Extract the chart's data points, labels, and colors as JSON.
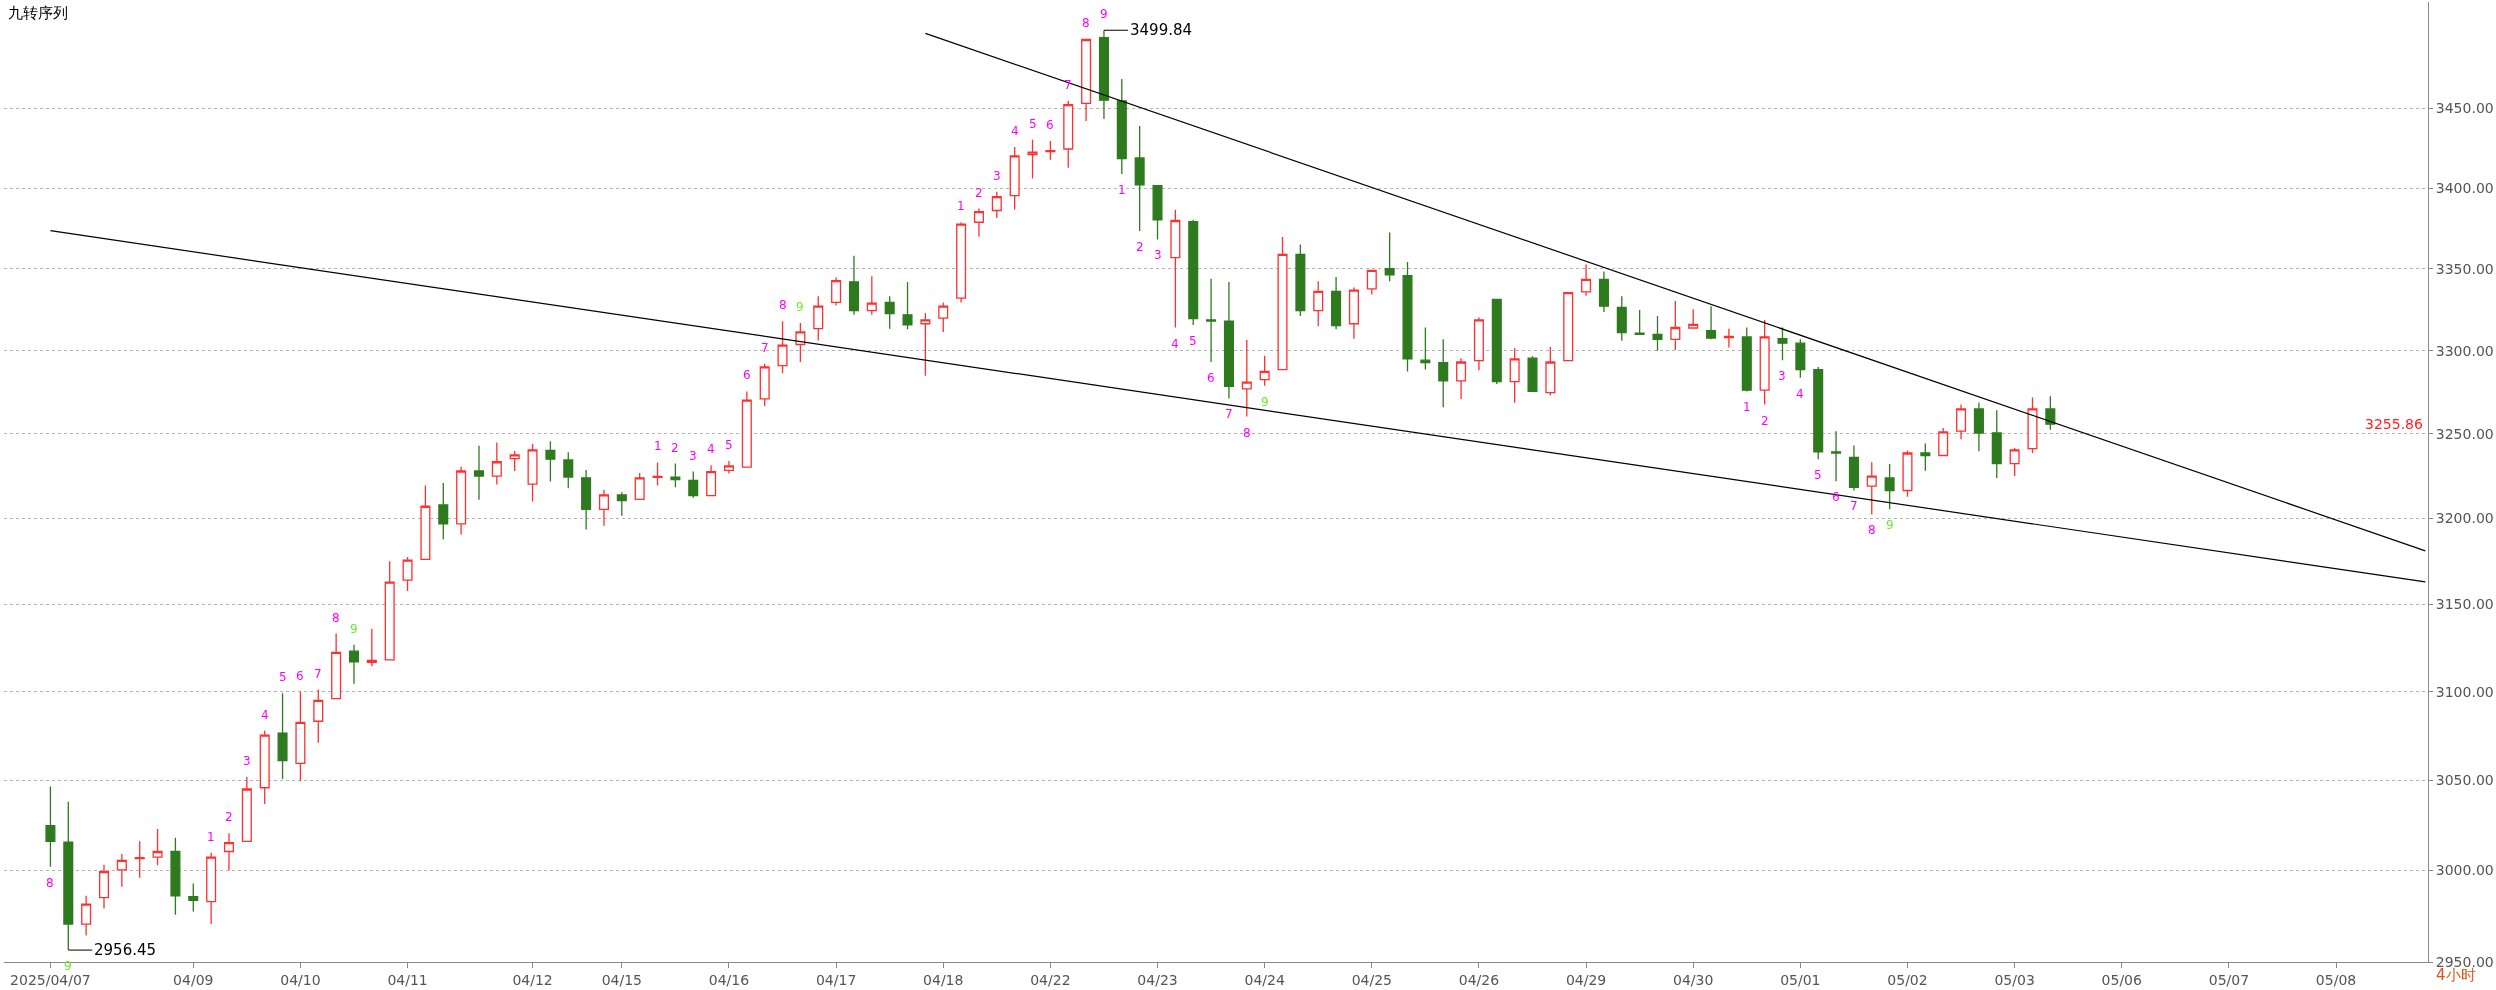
{
  "chart_data": {
    "type": "candlestick",
    "title": "九转序列",
    "categories": [
      "2025/04/07",
      null,
      null,
      null,
      null,
      null,
      null,
      null,
      "04/09",
      null,
      null,
      null,
      null,
      null,
      "04/10",
      null,
      null,
      null,
      null,
      null,
      "04/11",
      null,
      null,
      null,
      null,
      null,
      null,
      "04/12",
      null,
      null,
      null,
      null,
      "04/15",
      null,
      null,
      null,
      null,
      null,
      "04/16",
      null,
      null,
      null,
      null,
      null,
      "04/17",
      null,
      null,
      null,
      null,
      null,
      "04/18",
      null,
      null,
      null,
      null,
      null,
      "04/22",
      null,
      null,
      null,
      null,
      null,
      "04/23",
      null,
      null,
      null,
      null,
      null,
      "04/24",
      null,
      null,
      null,
      null,
      null,
      "04/25",
      null,
      null,
      null,
      null,
      null,
      "04/26",
      null,
      null,
      null,
      null,
      null,
      "04/29",
      null,
      null,
      null,
      null,
      null,
      "04/30",
      null,
      null,
      null,
      null,
      null,
      "05/01",
      null,
      null,
      null,
      null,
      null,
      "05/02",
      null,
      null,
      null,
      null,
      null,
      "05/03",
      null,
      null,
      null,
      null,
      null,
      "05/06",
      null,
      null,
      null,
      null,
      null,
      "05/07",
      null,
      null,
      null,
      null,
      null,
      "05/08",
      null,
      null,
      null,
      null,
      null
    ],
    "ohlc": [
      [
        3024.7,
        3046.5,
        3002,
        3016
      ],
      [
        3015.6,
        3038,
        2956.45,
        2970.6
      ],
      [
        2970.6,
        2986,
        2964.4,
        2981.5
      ],
      [
        2985,
        3003.1,
        2979.1,
        2999.3
      ],
      [
        3000.3,
        3009,
        2991,
        3005.5
      ],
      [
        3006.5,
        3016,
        2996,
        3007
      ],
      [
        3007.3,
        3022.9,
        3002.8,
        3010.4
      ],
      [
        3010.4,
        3018,
        2975.7,
        2986
      ],
      [
        2985.6,
        2992.8,
        2977.4,
        2983.6
      ],
      [
        2982.9,
        3009.7,
        2970.6,
        3007.3
      ],
      [
        3010.4,
        3020.5,
        3000,
        3015.3
      ],
      [
        3016,
        3051.8,
        3016,
        3045.1
      ],
      [
        3045.8,
        3077.9,
        3036.8,
        3075.4
      ],
      [
        3076.5,
        3099,
        3050.7,
        3061
      ],
      [
        3059.5,
        3100,
        3049.6,
        3082.5
      ],
      [
        3083.2,
        3101.2,
        3071.1,
        3095
      ],
      [
        3096,
        3133.2,
        3096,
        3122.4
      ],
      [
        3123.1,
        3126.7,
        3104.5,
        3117
      ],
      [
        3116.7,
        3136,
        3114.5,
        3117.8
      ],
      [
        3118.1,
        3175,
        3118.1,
        3162.9
      ],
      [
        3164,
        3177.5,
        3157.8,
        3175.7
      ],
      [
        3176.1,
        3219.4,
        3176.1,
        3207.2
      ],
      [
        3208,
        3220.9,
        3187.8,
        3196.9
      ],
      [
        3196.9,
        3230.6,
        3190.7,
        3228
      ],
      [
        3228,
        3243,
        3211,
        3225
      ],
      [
        3225,
        3245,
        3220,
        3233.5
      ],
      [
        3235.4,
        3239.9,
        3228,
        3237.6
      ],
      [
        3220.3,
        3244,
        3210,
        3240.6
      ],
      [
        3240.2,
        3245.7,
        3221.8,
        3235
      ],
      [
        3234.6,
        3239.2,
        3217.8,
        3224.4
      ],
      [
        3224,
        3228.6,
        3193.6,
        3205.4
      ],
      [
        3205.4,
        3216.9,
        3195.8,
        3213.9
      ],
      [
        3213.9,
        3215.4,
        3201.6,
        3210.6
      ],
      [
        3211.3,
        3226.8,
        3211.3,
        3223.9
      ],
      [
        3224.2,
        3233.1,
        3219.5,
        3224.8
      ],
      [
        3224.3,
        3232.4,
        3218.4,
        3222.9
      ],
      [
        3222.5,
        3227.7,
        3212.1,
        3213.5
      ],
      [
        3213.5,
        3231.4,
        3213.5,
        3227.7
      ],
      [
        3228.4,
        3234,
        3226.6,
        3231
      ],
      [
        3230.3,
        3275.5,
        3230.3,
        3270.2
      ],
      [
        3271,
        3292.1,
        3266.8,
        3290.2
      ],
      [
        3291,
        3317.9,
        3286.4,
        3303.4
      ],
      [
        3303.8,
        3316.8,
        3293.2,
        3311.4
      ],
      [
        3313.4,
        3333.2,
        3306.2,
        3327.1
      ],
      [
        3329.4,
        3344.7,
        3327.5,
        3342.7
      ],
      [
        3342,
        3358,
        3321.8,
        3324.4
      ],
      [
        3324.4,
        3345.4,
        3321.8,
        3329
      ],
      [
        3329.4,
        3333.2,
        3313.4,
        3322.5
      ],
      [
        3321.8,
        3341.9,
        3313,
        3315.7
      ],
      [
        3316.4,
        3323,
        3284.9,
        3318.7
      ],
      [
        3319.8,
        3329.4,
        3311.4,
        3327.1
      ],
      [
        3332,
        3378.7,
        3329.4,
        3377.5
      ],
      [
        3378.7,
        3387.2,
        3369.8,
        3385.3
      ],
      [
        3386,
        3397.7,
        3381.4,
        3394.6
      ],
      [
        3395.3,
        3425.6,
        3386.4,
        3420.1
      ],
      [
        3420.9,
        3430.3,
        3405.9,
        3422.4
      ],
      [
        3422.8,
        3429.5,
        3417.7,
        3423.4
      ],
      [
        3424.4,
        3454.8,
        3412.6,
        3452.4
      ],
      [
        3453.2,
        3493.9,
        3442.1,
        3493.9
      ],
      [
        3495.1,
        3499.84,
        3443.3,
        3455.2
      ],
      [
        3454.8,
        3468.7,
        3408.8,
        3418.4
      ],
      [
        3418.8,
        3438.9,
        3373.3,
        3401.9
      ],
      [
        3401.5,
        3401.5,
        3368.1,
        3380.2
      ],
      [
        3356.9,
        3386.4,
        3314.1,
        3379.8
      ],
      [
        3379.1,
        3380.2,
        3315.6,
        3319.5
      ],
      [
        3318.7,
        3343.9,
        3293.2,
        3318
      ],
      [
        3318,
        3341.9,
        3271.3,
        3278.5
      ],
      [
        3277,
        3306.5,
        3260.4,
        3281.1
      ],
      [
        3282.6,
        3297,
        3278.9,
        3287.5
      ],
      [
        3288.6,
        3369.6,
        3288.6,
        3358.8
      ],
      [
        3358.8,
        3365,
        3321.1,
        3324.4
      ],
      [
        3324.4,
        3342.3,
        3314.8,
        3336.1
      ],
      [
        3336.1,
        3345,
        3313,
        3315.2
      ],
      [
        3316.4,
        3338.5,
        3307.3,
        3336.9
      ],
      [
        3337.7,
        3349,
        3334.2,
        3349
      ],
      [
        3350.1,
        3372.4,
        3342.3,
        3346.2
      ],
      [
        3345.8,
        3354.1,
        3287.5,
        3295.1
      ],
      [
        3294.3,
        3314.1,
        3288.6,
        3292.8
      ],
      [
        3292.8,
        3306.9,
        3266,
        3281.8
      ],
      [
        3281.8,
        3295.5,
        3271,
        3293.2
      ],
      [
        3294,
        3320.2,
        3288.2,
        3318.7
      ],
      [
        3331.3,
        3331.3,
        3279.9,
        3281.4
      ],
      [
        3281.4,
        3301.5,
        3268.7,
        3295.1
      ],
      [
        3295.5,
        3296.6,
        3275.5,
        3275.5
      ],
      [
        3274.7,
        3302.3,
        3273.2,
        3293.2
      ],
      [
        3294,
        3335.4,
        3294,
        3335.4
      ],
      [
        3335.8,
        3352.6,
        3333.5,
        3343.5
      ],
      [
        3343.5,
        3348.4,
        3323.6,
        3327.1
      ],
      [
        3326.3,
        3333.2,
        3306.1,
        3311
      ],
      [
        3310.6,
        3324.8,
        3309.9,
        3309.9
      ],
      [
        3309.9,
        3321.1,
        3300,
        3306.9
      ],
      [
        3306.9,
        3330.2,
        3300.4,
        3314.1
      ],
      [
        3313.8,
        3325.2,
        3313.4,
        3316
      ],
      [
        3312.2,
        3327.1,
        3306.9,
        3307.7
      ],
      [
        3308,
        3313.4,
        3302,
        3308.7
      ],
      [
        3308.4,
        3314.1,
        3275.5,
        3276.2
      ],
      [
        3276.2,
        3318.7,
        3267.6,
        3308.4
      ],
      [
        3307.3,
        3314.1,
        3294.3,
        3304.6
      ],
      [
        3304.6,
        3306.9,
        3283.7,
        3288.6
      ],
      [
        3288.6,
        3290.2,
        3235,
        3239.4
      ],
      [
        3239.4,
        3251.7,
        3222,
        3238.7
      ],
      [
        3236.1,
        3243.1,
        3216.5,
        3218.3
      ],
      [
        3219.1,
        3233.2,
        3202.4,
        3225
      ],
      [
        3223.9,
        3232.1,
        3205.4,
        3216.5
      ],
      [
        3216.5,
        3240.2,
        3212.8,
        3238.7
      ],
      [
        3238.7,
        3244.3,
        3228.2,
        3237.2
      ],
      [
        3237.2,
        3253.6,
        3236.9,
        3251.3
      ],
      [
        3251.7,
        3267.6,
        3246.8,
        3265
      ],
      [
        3265,
        3268.7,
        3239.8,
        3250.6
      ],
      [
        3250.6,
        3264.2,
        3223.9,
        3232.4
      ],
      [
        3232.4,
        3241.7,
        3225,
        3240.6
      ],
      [
        3241.3,
        3271.8,
        3238.7,
        3265
      ],
      [
        3265,
        3272.6,
        3252.5,
        3255.86
      ],
      null,
      null,
      null,
      null,
      null,
      null,
      null,
      null,
      null,
      null,
      null,
      null,
      null,
      null,
      null,
      null,
      null,
      null,
      null,
      null,
      null
    ],
    "colors": [
      "#2e7a1e",
      "#2e7a1e",
      "#ff3030",
      "#ff3030",
      "#ff3030",
      "#ff3030",
      "#ff3030",
      "#2e7a1e",
      "#2e7a1e",
      "#ff3030",
      "#ff3030",
      "#ff3030",
      "#ff3030",
      "#2e7a1e",
      "#ff3030",
      "#ff3030",
      "#ff3030",
      "#2e7a1e",
      "#ff3030",
      "#ff3030",
      "#ff3030",
      "#ff3030",
      "#2e7a1e",
      "#ff3030",
      "#2e7a1e",
      "#ff3030",
      "#ff3030",
      "#ff3030",
      "#2e7a1e",
      "#2e7a1e",
      "#2e7a1e",
      "#ff3030",
      "#2e7a1e",
      "#ff3030",
      "#ff3030",
      "#2e7a1e",
      "#2e7a1e",
      "#ff3030",
      "#ff3030",
      "#ff3030",
      "#ff3030",
      "#ff3030",
      "#ff3030",
      "#ff3030",
      "#ff3030",
      "#2e7a1e",
      "#ff3030",
      "#2e7a1e",
      "#2e7a1e",
      "#ff3030",
      "#ff3030",
      "#ff3030",
      "#ff3030",
      "#ff3030",
      "#ff3030",
      "#ff3030",
      "#ff3030",
      "#ff3030",
      "#ff3030",
      "#2e7a1e",
      "#2e7a1e",
      "#2e7a1e",
      "#2e7a1e",
      "#ff3030",
      "#2e7a1e",
      "#2e7a1e",
      "#2e7a1e",
      "#ff3030",
      "#ff3030",
      "#ff3030",
      "#2e7a1e",
      "#ff3030",
      "#2e7a1e",
      "#ff3030",
      "#ff3030",
      "#2e7a1e",
      "#2e7a1e",
      "#2e7a1e",
      "#2e7a1e",
      "#ff3030",
      "#ff3030",
      "#2e7a1e",
      "#ff3030",
      "#2e7a1e",
      "#ff3030",
      "#ff3030",
      "#ff3030",
      "#2e7a1e",
      "#2e7a1e",
      "#2e7a1e",
      "#2e7a1e",
      "#ff3030",
      "#ff3030",
      "#2e7a1e",
      "#ff3030",
      "#2e7a1e",
      "#ff3030",
      "#2e7a1e",
      "#2e7a1e",
      "#2e7a1e",
      "#2e7a1e",
      "#2e7a1e",
      "#ff3030",
      "#2e7a1e",
      "#ff3030",
      "#2e7a1e",
      "#ff3030",
      "#ff3030",
      "#2e7a1e",
      "#2e7a1e",
      "#ff3030",
      "#ff3030",
      "#2e7a1e",
      null,
      null,
      null,
      null,
      null,
      null,
      null,
      null,
      null,
      null,
      null,
      null,
      null,
      null,
      null,
      null,
      null,
      null,
      null,
      null,
      null
    ],
    "value_labels": [
      "8",
      "9",
      null,
      null,
      null,
      null,
      null,
      null,
      null,
      "1",
      "2",
      "3",
      "4",
      "5",
      "6",
      "7",
      "8",
      "9",
      null,
      null,
      null,
      null,
      null,
      null,
      null,
      null,
      null,
      null,
      null,
      null,
      null,
      null,
      null,
      null,
      "1",
      "2",
      "3",
      "4",
      "5",
      "6",
      "7",
      "8",
      "9",
      null,
      null,
      null,
      null,
      null,
      null,
      null,
      null,
      "1",
      "2",
      "3",
      "4",
      "5",
      "6",
      "7",
      "8",
      "9",
      "1",
      "2",
      "3",
      "4",
      "5",
      "6",
      "7",
      "8",
      "9",
      null,
      null,
      null,
      null,
      null,
      null,
      null,
      null,
      null,
      null,
      null,
      null,
      null,
      null,
      null,
      null,
      null,
      null,
      null,
      null,
      null,
      null,
      null,
      null,
      null,
      null,
      "1",
      "2",
      "3",
      "4",
      "5",
      "6",
      "7",
      "8",
      "9",
      null,
      null,
      null,
      null,
      null,
      null,
      null,
      null,
      null,
      null,
      null,
      null,
      null,
      null,
      null,
      null,
      null,
      null,
      null,
      null,
      null,
      null,
      null,
      null,
      null,
      null,
      null,
      null,
      null,
      null
    ],
    "series": [
      {
        "type": "line",
        "color": "#000000",
        "values": [
          3373.5,
          null,
          null,
          null,
          null,
          null,
          null,
          null,
          null,
          null,
          null,
          null,
          null,
          null,
          null,
          null,
          null,
          null,
          null,
          null,
          null,
          null,
          null,
          null,
          null,
          null,
          null,
          null,
          null,
          null,
          null,
          null,
          null,
          null,
          null,
          null,
          null,
          null,
          null,
          null,
          null,
          null,
          null,
          null,
          null,
          null,
          null,
          null,
          null,
          null,
          null,
          null,
          null,
          null,
          null,
          null,
          null,
          null,
          null,
          null,
          null,
          null,
          null,
          null,
          null,
          null,
          null,
          null,
          null,
          null,
          null,
          null,
          null,
          null,
          null,
          null,
          null,
          null,
          null,
          null,
          null,
          null,
          null,
          null,
          null,
          null,
          null,
          null,
          null,
          null,
          null,
          null,
          null,
          null,
          null,
          null,
          null,
          null,
          null,
          null,
          null,
          null,
          null,
          null,
          null,
          null,
          null,
          null,
          null,
          null,
          null,
          null,
          null,
          null,
          null,
          null,
          null,
          null,
          null,
          null,
          null,
          null,
          null,
          null,
          null,
          null,
          null,
          null,
          null,
          null,
          null,
          null,
          null,
          3163
        ]
      },
      {
        "type": "line",
        "color": "#000000",
        "values": [
          null,
          null,
          null,
          null,
          null,
          null,
          null,
          null,
          null,
          null,
          null,
          null,
          null,
          null,
          null,
          null,
          null,
          null,
          null,
          null,
          null,
          null,
          null,
          null,
          null,
          null,
          null,
          null,
          null,
          null,
          null,
          null,
          null,
          null,
          null,
          null,
          null,
          null,
          null,
          null,
          null,
          null,
          null,
          null,
          null,
          null,
          null,
          null,
          null,
          3497.8,
          null,
          null,
          null,
          null,
          null,
          null,
          null,
          null,
          null,
          null,
          null,
          null,
          null,
          null,
          null,
          null,
          null,
          null,
          null,
          null,
          null,
          null,
          null,
          null,
          null,
          null,
          null,
          null,
          null,
          null,
          null,
          null,
          null,
          null,
          null,
          null,
          null,
          null,
          null,
          null,
          null,
          null,
          null,
          null,
          null,
          null,
          null,
          null,
          null,
          null,
          null,
          null,
          null,
          null,
          null,
          null,
          null,
          null,
          null,
          null,
          null,
          null,
          null,
          null,
          null,
          null,
          null,
          null,
          null,
          null,
          null,
          null,
          null,
          null,
          null,
          null,
          null,
          null,
          null,
          null,
          null,
          null,
          null,
          3181.1
        ]
      }
    ],
    "ylim": [
      2950,
      3518
    ],
    "yticks": [
      {
        "value": 2950,
        "label": "2950.00"
      },
      {
        "value": 3000,
        "label": "3000.00"
      },
      {
        "value": 3050,
        "label": "3050.00"
      },
      {
        "value": 3100,
        "label": "3100.00"
      },
      {
        "value": 3150,
        "label": "3150.00"
      },
      {
        "value": 3200,
        "label": "3200.00"
      },
      {
        "value": 3250,
        "label": "3250.00"
      },
      {
        "value": 3300,
        "label": "3300.00"
      },
      {
        "value": 3350,
        "label": "3350.00"
      },
      {
        "value": 3400,
        "label": "3400.00"
      },
      {
        "value": 3450,
        "label": "3450.00"
      }
    ],
    "log": "y",
    "grid": "y",
    "annotations": [
      "3499.84",
      "2956.45",
      "3255.86",
      "4小时"
    ]
  }
}
